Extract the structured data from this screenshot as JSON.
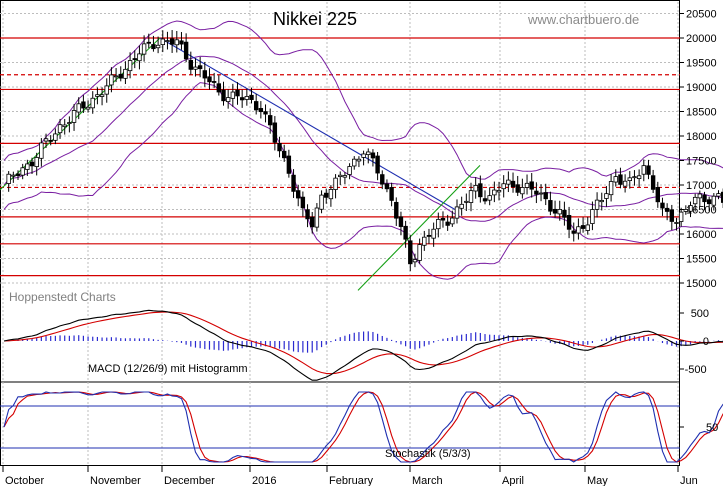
{
  "chart_data": {
    "type": "candlestick",
    "title": "Nikkei 225",
    "watermark": "www.chartbuero.de",
    "source_label": "Hoppenstedt Charts",
    "colors": {
      "up": "#ffffff",
      "down": "#000000",
      "support_resistance": "#d40000",
      "bollinger": "#7a1fa2",
      "trend_down": "#1f2fb0",
      "trend_up": "#16a016",
      "macd_line": "#000000",
      "signal_line": "#d40000",
      "histogram": "#2a2ad0",
      "stoch_k": "#1f2fb0",
      "stoch_d": "#d40000",
      "grid": "#bdbdbd"
    },
    "months": [
      "October",
      "November",
      "December",
      "2016",
      "February",
      "March",
      "April",
      "May",
      "Jun"
    ],
    "price_axis": {
      "ticks": [
        "20500",
        "20000",
        "19500",
        "19000",
        "18500",
        "18000",
        "17500",
        "17000",
        "16500",
        "16000",
        "15500",
        "15000"
      ],
      "ylim": [
        14500,
        20700
      ]
    },
    "horizontal_levels": [
      {
        "value": 20000,
        "style": "solid"
      },
      {
        "value": 19250,
        "style": "dashed"
      },
      {
        "value": 18950,
        "style": "solid"
      },
      {
        "value": 17850,
        "style": "solid"
      },
      {
        "value": 16950,
        "style": "dashed"
      },
      {
        "value": 16350,
        "style": "solid"
      },
      {
        "value": 15800,
        "style": "solid"
      },
      {
        "value": 15150,
        "style": "solid"
      }
    ],
    "macd": {
      "label": "MACD (12/26/9) mit Histogramm",
      "ticks": [
        "500",
        "0",
        "-500"
      ],
      "ylim": [
        -700,
        700
      ]
    },
    "stochastic": {
      "label": "Stochastik (5/3/3)",
      "ticks": [
        "50"
      ],
      "ylim": [
        0,
        100
      ],
      "levels": [
        80,
        20
      ]
    }
  }
}
